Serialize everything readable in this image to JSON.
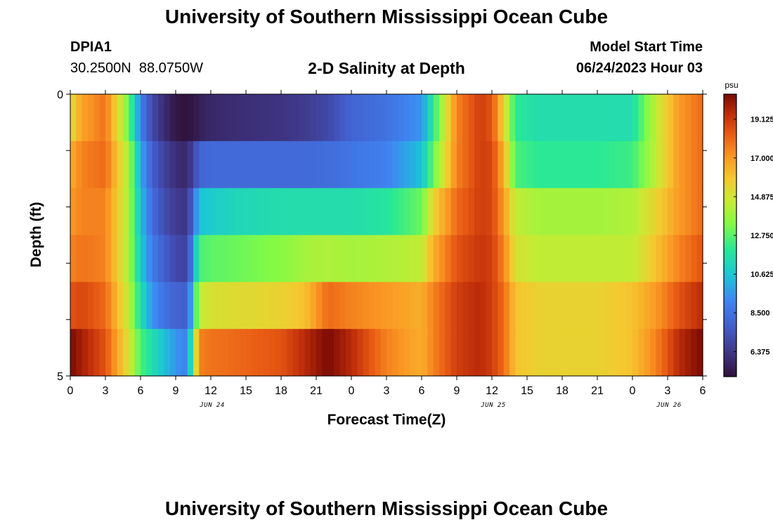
{
  "title": "University of Southern Mississippi Ocean Cube",
  "footer_title": "University of Southern Mississippi Ocean Cube",
  "station": {
    "id": "DPIA1",
    "coords": "30.2500N  88.0750W"
  },
  "center_title": "2-D Salinity at Depth",
  "model_start": {
    "label": "Model Start Time",
    "value": "06/24/2023 Hour 03"
  },
  "chart_data": {
    "type": "heatmap",
    "title": "2-D Salinity at Depth",
    "xlabel": "Forecast Time(Z)",
    "ylabel": "Depth (ft)",
    "x_hours_range": [
      0,
      54
    ],
    "x_tick_labels": [
      "0",
      "3",
      "6",
      "9",
      "12",
      "15",
      "18",
      "21",
      "0",
      "3",
      "6",
      "9",
      "12",
      "15",
      "18",
      "21",
      "0",
      "3",
      "6"
    ],
    "date_labels": [
      {
        "text": "JUN 24",
        "hour": 12
      },
      {
        "text": "JUN 25",
        "hour": 36
      },
      {
        "text": "JUN 26",
        "hour": 51
      }
    ],
    "y_tick_labels": [
      "0",
      "5"
    ],
    "ylim": [
      0,
      5
    ],
    "depth_bands": [
      0,
      1,
      2,
      3,
      4,
      5
    ],
    "colorbar": {
      "units": "psu",
      "min": 5.0,
      "max": 20.5,
      "tick_labels": [
        "19.125",
        "17.000",
        "14.875",
        "12.750",
        "10.625",
        "8.500",
        "6.375"
      ],
      "tick_values": [
        19.125,
        17.0,
        14.875,
        12.75,
        10.625,
        8.5,
        6.375
      ]
    },
    "profiles_hours": [
      0,
      1,
      3,
      5,
      6,
      7,
      8,
      9,
      10,
      11,
      12,
      14,
      18,
      20,
      22,
      24,
      27,
      30,
      31,
      33,
      35,
      36,
      37,
      38,
      40,
      42,
      45,
      48,
      50,
      52,
      54
    ],
    "rows": [
      [
        15.2,
        16.8,
        17.8,
        13.0,
        9.0,
        7.0,
        6.0,
        5.2,
        5.0,
        5.5,
        5.8,
        6.0,
        6.2,
        6.5,
        7.0,
        8.0,
        8.5,
        9.5,
        12.0,
        17.5,
        19.0,
        18.5,
        15.5,
        12.0,
        11.5,
        11.5,
        11.5,
        11.5,
        14.5,
        17.0,
        18.0
      ],
      [
        16.5,
        17.5,
        18.0,
        14.0,
        10.0,
        7.8,
        6.8,
        6.0,
        5.8,
        8.0,
        8.2,
        8.2,
        8.2,
        8.2,
        8.3,
        8.6,
        9.0,
        10.5,
        13.0,
        17.5,
        19.0,
        18.8,
        16.5,
        12.5,
        12.0,
        12.0,
        12.0,
        12.3,
        14.5,
        17.0,
        18.0
      ],
      [
        17.0,
        17.5,
        17.5,
        14.0,
        10.5,
        8.3,
        7.2,
        6.5,
        6.3,
        10.5,
        10.8,
        11.2,
        11.5,
        11.5,
        11.5,
        11.5,
        11.8,
        13.0,
        15.5,
        18.0,
        19.0,
        18.8,
        17.0,
        14.5,
        14.0,
        14.0,
        14.0,
        14.2,
        15.5,
        17.0,
        18.0
      ],
      [
        17.5,
        17.8,
        17.5,
        14.0,
        10.8,
        8.8,
        7.8,
        7.0,
        6.8,
        12.5,
        12.8,
        13.0,
        13.5,
        14.0,
        14.2,
        14.0,
        14.2,
        14.5,
        16.5,
        18.5,
        19.2,
        19.0,
        17.5,
        15.0,
        14.5,
        14.5,
        14.5,
        14.5,
        16.0,
        17.5,
        18.5
      ],
      [
        18.5,
        18.8,
        18.0,
        14.5,
        11.5,
        9.5,
        8.5,
        8.0,
        7.8,
        14.5,
        15.0,
        15.2,
        15.5,
        16.0,
        18.0,
        17.5,
        17.0,
        16.5,
        17.5,
        19.0,
        19.5,
        19.0,
        18.0,
        16.0,
        15.5,
        15.5,
        15.5,
        16.0,
        17.0,
        18.5,
        19.5
      ],
      [
        20.5,
        19.8,
        18.5,
        15.0,
        12.5,
        11.5,
        10.5,
        9.5,
        9.0,
        17.5,
        17.8,
        18.0,
        18.5,
        19.5,
        20.5,
        19.5,
        17.5,
        16.5,
        17.5,
        19.0,
        19.5,
        19.0,
        18.0,
        16.0,
        15.5,
        15.5,
        15.5,
        16.0,
        17.5,
        19.5,
        20.5
      ]
    ]
  }
}
